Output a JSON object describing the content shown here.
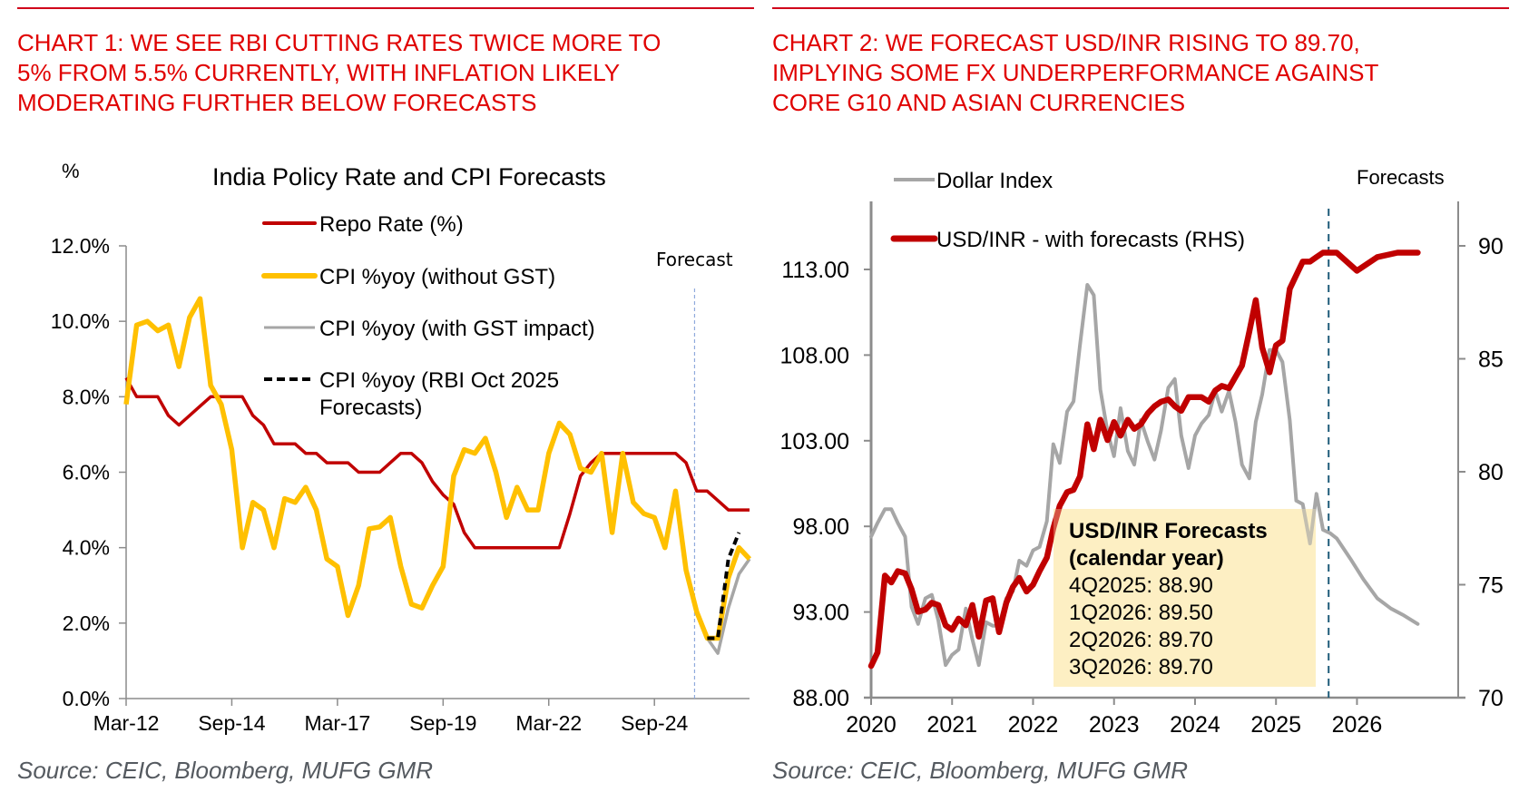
{
  "chart1": {
    "heading": [
      "CHART 1: WE SEE RBI CUTTING RATES TWICE MORE TO",
      "5% FROM 5.5% CURRENTLY, WITH INFLATION LIKELY",
      "MODERATING FURTHER BELOW FORECASTS"
    ],
    "source": "Source: CEIC, Bloomberg, MUFG GMR"
  },
  "chart2": {
    "heading": [
      "CHART 2: WE FORECAST USD/INR RISING TO 89.70,",
      "IMPLYING SOME FX UNDERPERFORMANCE AGAINST",
      "CORE G10 AND ASIAN CURRENCIES"
    ],
    "source": "Source: CEIC, Bloomberg, MUFG GMR",
    "forecast_box": {
      "title": [
        "USD/INR Forecasts",
        "(calendar year)"
      ],
      "lines": [
        "4Q2025: 88.90",
        "1Q2026: 89.50",
        "2Q2026: 89.70",
        "3Q2026: 89.70"
      ]
    }
  },
  "chart_data": [
    {
      "type": "line",
      "title": "India Policy Rate and CPI Forecasts",
      "ylabel": "%",
      "ylim": [
        0,
        12
      ],
      "yticks": [
        "0.0%",
        "2.0%",
        "4.0%",
        "6.0%",
        "8.0%",
        "10.0%",
        "12.0%"
      ],
      "ytick_values": [
        0,
        2,
        4,
        6,
        8,
        10,
        12
      ],
      "xlabel": "",
      "xtick_labels": [
        "Mar-12",
        "Sep-14",
        "Mar-17",
        "Sep-19",
        "Mar-22",
        "Sep-24"
      ],
      "xtick_index": [
        0,
        10,
        20,
        30,
        40,
        50
      ],
      "x_periods": 59,
      "x_unit": "quarters from Mar-12",
      "forecast_marker": {
        "label": "Forecast",
        "x": 53.8
      },
      "legend_position": "top-center",
      "grid": false,
      "colors": {
        "repo": "#c00000",
        "cpi_no_gst": "#ffc000",
        "cpi_gst": "#a6a6a6",
        "cpi_rbi": "#000000",
        "forecast_line": "#8faadc"
      },
      "series": [
        {
          "name": "Repo Rate (%)",
          "key": "repo",
          "x": [
            0,
            1,
            2,
            3,
            4,
            5,
            6,
            7,
            8,
            9,
            10,
            11,
            12,
            13,
            14,
            15,
            16,
            17,
            18,
            19,
            20,
            21,
            22,
            23,
            24,
            25,
            26,
            27,
            28,
            29,
            30,
            31,
            32,
            33,
            34,
            35,
            36,
            37,
            38,
            39,
            40,
            41,
            42,
            43,
            44,
            45,
            46,
            47,
            48,
            49,
            50,
            51,
            52,
            53,
            54,
            55,
            56,
            57,
            58,
            59
          ],
          "values": [
            8.5,
            8.0,
            8.0,
            8.0,
            7.5,
            7.25,
            7.5,
            7.75,
            8.0,
            8.0,
            8.0,
            8.0,
            7.5,
            7.25,
            6.75,
            6.75,
            6.75,
            6.5,
            6.5,
            6.25,
            6.25,
            6.25,
            6.0,
            6.0,
            6.0,
            6.25,
            6.5,
            6.5,
            6.25,
            5.75,
            5.4,
            5.15,
            4.4,
            4.0,
            4.0,
            4.0,
            4.0,
            4.0,
            4.0,
            4.0,
            4.0,
            4.0,
            4.9,
            5.9,
            6.25,
            6.5,
            6.5,
            6.5,
            6.5,
            6.5,
            6.5,
            6.5,
            6.5,
            6.25,
            5.5,
            5.5,
            5.25,
            5.0,
            5.0,
            5.0
          ]
        },
        {
          "name": "CPI %yoy (without GST)",
          "key": "cpi_no_gst",
          "x": [
            0,
            1,
            2,
            3,
            4,
            5,
            6,
            7,
            8,
            9,
            10,
            11,
            12,
            13,
            14,
            15,
            16,
            17,
            18,
            19,
            20,
            21,
            22,
            23,
            24,
            25,
            26,
            27,
            28,
            29,
            30,
            31,
            32,
            33,
            34,
            35,
            36,
            37,
            38,
            39,
            40,
            41,
            42,
            43,
            44,
            45,
            46,
            47,
            48,
            49,
            50,
            51,
            52,
            53,
            54,
            55,
            56,
            57,
            58,
            59
          ],
          "values": [
            7.8,
            9.9,
            10.0,
            9.75,
            9.9,
            8.8,
            10.1,
            10.6,
            8.3,
            7.8,
            6.6,
            4.0,
            5.2,
            5.0,
            4.0,
            5.3,
            5.2,
            5.6,
            5.0,
            3.7,
            3.5,
            2.2,
            3.0,
            4.5,
            4.55,
            4.8,
            3.5,
            2.5,
            2.4,
            3.0,
            3.5,
            5.9,
            6.6,
            6.5,
            6.9,
            6.0,
            4.8,
            5.6,
            5.0,
            5.0,
            6.5,
            7.3,
            7.0,
            6.1,
            6.0,
            6.5,
            4.4,
            6.5,
            5.2,
            4.9,
            4.8,
            4.0,
            5.5,
            3.4,
            2.3,
            1.6,
            1.6,
            3.2,
            4.0,
            3.7
          ]
        },
        {
          "name": "CPI %yoy (with GST impact)",
          "key": "cpi_gst",
          "x": [
            55,
            56,
            57,
            58,
            59
          ],
          "values": [
            1.6,
            1.2,
            2.4,
            3.3,
            3.7
          ]
        },
        {
          "name": "CPI %yoy (RBI Oct 2025 Forecasts)",
          "key": "cpi_rbi",
          "x": [
            55,
            56,
            57,
            58
          ],
          "values": [
            1.6,
            1.6,
            3.7,
            4.4
          ]
        }
      ]
    },
    {
      "type": "line",
      "title": "",
      "ylim": [
        88,
        118
      ],
      "yticks": [
        "88.00",
        "93.00",
        "98.00",
        "103.00",
        "108.00",
        "113.00"
      ],
      "ytick_values": [
        88,
        93,
        98,
        103,
        108,
        113
      ],
      "y2lim": [
        70,
        90.6
      ],
      "y2ticks": [
        "70",
        "75",
        "80",
        "85",
        "90"
      ],
      "y2tick_values": [
        70,
        75,
        80,
        85,
        90
      ],
      "xlim": [
        2020,
        2027.25
      ],
      "xtick_labels": [
        "2020",
        "2021",
        "2022",
        "2023",
        "2024",
        "2025",
        "2026"
      ],
      "xtick_values": [
        2020,
        2021,
        2022,
        2023,
        2024,
        2025,
        2026
      ],
      "forecast_marker": {
        "label": "Forecasts",
        "x": 2025.65
      },
      "legend_position": "top-left",
      "grid": false,
      "colors": {
        "dxy": "#a6a6a6",
        "usdinr": "#c00000",
        "forecast_line": "#1f5c7a",
        "box": "#fdeebf"
      },
      "series": [
        {
          "name": "Dollar Index",
          "key": "dxy",
          "axis": "left",
          "x": [
            2020.0,
            2020.08,
            2020.17,
            2020.25,
            2020.33,
            2020.42,
            2020.5,
            2020.58,
            2020.67,
            2020.75,
            2020.83,
            2020.92,
            2021.0,
            2021.08,
            2021.17,
            2021.25,
            2021.33,
            2021.42,
            2021.5,
            2021.58,
            2021.67,
            2021.75,
            2021.83,
            2021.92,
            2022.0,
            2022.08,
            2022.17,
            2022.25,
            2022.33,
            2022.42,
            2022.5,
            2022.58,
            2022.67,
            2022.75,
            2022.83,
            2022.92,
            2023.0,
            2023.08,
            2023.17,
            2023.25,
            2023.33,
            2023.42,
            2023.5,
            2023.58,
            2023.67,
            2023.75,
            2023.83,
            2023.92,
            2024.0,
            2024.08,
            2024.17,
            2024.25,
            2024.33,
            2024.42,
            2024.5,
            2024.58,
            2024.67,
            2024.75,
            2024.83,
            2024.92,
            2025.0,
            2025.08,
            2025.17,
            2025.25,
            2025.33,
            2025.42,
            2025.5,
            2025.58,
            2025.67,
            2025.75,
            2025.92,
            2026.08,
            2026.25,
            2026.42,
            2026.58,
            2026.75
          ],
          "values": [
            97.4,
            98.2,
            99.0,
            99.0,
            98.2,
            97.4,
            93.3,
            92.3,
            93.8,
            94.0,
            92.5,
            89.9,
            90.5,
            90.8,
            93.2,
            91.4,
            89.9,
            92.4,
            92.2,
            92.2,
            93.8,
            94.2,
            96.0,
            95.7,
            96.6,
            96.8,
            98.3,
            102.8,
            101.7,
            104.7,
            105.3,
            108.6,
            112.1,
            111.5,
            106.0,
            103.5,
            102.1,
            104.9,
            102.4,
            101.6,
            104.2,
            102.9,
            101.9,
            103.6,
            106.1,
            106.6,
            103.3,
            101.4,
            103.3,
            104.0,
            104.5,
            105.9,
            104.7,
            105.9,
            104.1,
            101.6,
            100.8,
            104.1,
            105.7,
            108.3,
            108.3,
            107.6,
            104.2,
            99.5,
            99.3,
            97.0,
            99.9,
            97.8,
            97.6,
            97.3,
            96.1,
            94.9,
            93.8,
            93.2,
            92.8,
            92.3
          ]
        },
        {
          "name": "USD/INR - with forecasts (RHS)",
          "key": "usdinr",
          "axis": "right",
          "x": [
            2020.0,
            2020.08,
            2020.17,
            2020.25,
            2020.33,
            2020.42,
            2020.5,
            2020.58,
            2020.67,
            2020.75,
            2020.83,
            2020.92,
            2021.0,
            2021.08,
            2021.17,
            2021.25,
            2021.33,
            2021.42,
            2021.5,
            2021.58,
            2021.67,
            2021.75,
            2021.83,
            2021.92,
            2022.0,
            2022.08,
            2022.17,
            2022.25,
            2022.33,
            2022.42,
            2022.5,
            2022.58,
            2022.67,
            2022.75,
            2022.83,
            2022.92,
            2023.0,
            2023.08,
            2023.17,
            2023.25,
            2023.33,
            2023.42,
            2023.5,
            2023.58,
            2023.67,
            2023.75,
            2023.83,
            2023.92,
            2024.0,
            2024.08,
            2024.17,
            2024.25,
            2024.33,
            2024.42,
            2024.5,
            2024.58,
            2024.67,
            2024.75,
            2024.83,
            2024.92,
            2025.0,
            2025.08,
            2025.17,
            2025.25,
            2025.33,
            2025.42,
            2025.5,
            2025.58,
            2025.65,
            2025.75,
            2026.0,
            2026.25,
            2026.5,
            2026.75
          ],
          "values": [
            71.4,
            72.0,
            75.4,
            75.1,
            75.6,
            75.5,
            74.8,
            73.8,
            73.9,
            74.2,
            74.1,
            73.2,
            73.0,
            73.5,
            73.2,
            74.1,
            72.7,
            74.3,
            74.4,
            72.9,
            74.2,
            74.9,
            75.3,
            74.7,
            75.0,
            75.6,
            76.2,
            77.5,
            78.5,
            79.1,
            79.2,
            79.8,
            82.1,
            81.0,
            82.3,
            81.4,
            82.2,
            81.6,
            82.3,
            81.9,
            82.1,
            82.6,
            82.9,
            83.1,
            83.2,
            82.9,
            82.7,
            83.3,
            83.3,
            83.3,
            83.1,
            83.6,
            83.8,
            83.7,
            84.2,
            84.7,
            86.2,
            87.6,
            85.5,
            84.4,
            85.6,
            85.8,
            88.1,
            88.7,
            89.3,
            89.3,
            89.5,
            89.7,
            89.7,
            89.7,
            88.9,
            89.5,
            89.7,
            89.7
          ]
        }
      ]
    }
  ],
  "chart1_labels": {
    "legend": [
      "Repo Rate (%)",
      "CPI %yoy (without GST)",
      "CPI %yoy (with GST impact)",
      "CPI %yoy (RBI Oct 2025",
      "Forecasts)"
    ]
  }
}
